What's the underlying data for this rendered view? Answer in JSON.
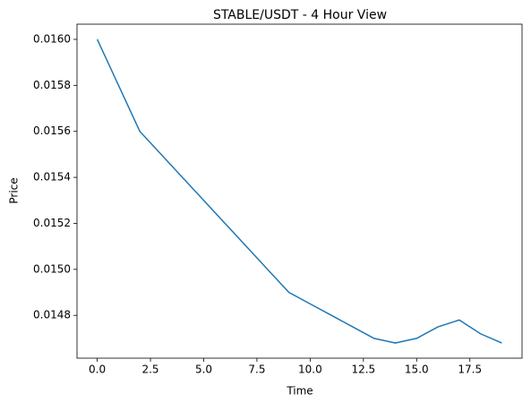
{
  "chart_data": {
    "type": "line",
    "title": "STABLE/USDT - 4 Hour View",
    "x_label": "Time",
    "y_label": "Price",
    "x": [
      0,
      1,
      2,
      3,
      4,
      5,
      6,
      7,
      8,
      9,
      10,
      11,
      12,
      13,
      14,
      15,
      16,
      17,
      18,
      19
    ],
    "series": [
      {
        "name": "STABLE/USDT",
        "color": "#1f77b4",
        "values": [
          0.016,
          0.0158,
          0.0156,
          0.0155,
          0.0154,
          0.0153,
          0.0152,
          0.0151,
          0.015,
          0.0149,
          0.01485,
          0.0148,
          0.01475,
          0.0147,
          0.01468,
          0.0147,
          0.01475,
          0.01478,
          0.01472,
          0.01468
        ]
      }
    ],
    "xlim": [
      -0.95,
      19.95
    ],
    "xticks": [
      {
        "value": 0,
        "label": "0.0"
      },
      2.5,
      {
        "value": 5,
        "label": "5.0"
      },
      7.5,
      {
        "value": 10,
        "label": "10.0"
      },
      12.5,
      {
        "value": 15,
        "label": "15.0"
      },
      17.5
    ],
    "ylim": [
      0.014614,
      0.016066
    ],
    "yticks": [
      {
        "value": 0.0148,
        "label": "0.0148"
      },
      {
        "value": 0.015,
        "label": "0.0150"
      },
      {
        "value": 0.0152,
        "label": "0.0152"
      },
      {
        "value": 0.0154,
        "label": "0.0154"
      },
      {
        "value": 0.0156,
        "label": "0.0156"
      },
      {
        "value": 0.0158,
        "label": "0.0158"
      },
      {
        "value": 0.016,
        "label": "0.0160"
      }
    ],
    "grid": false
  }
}
